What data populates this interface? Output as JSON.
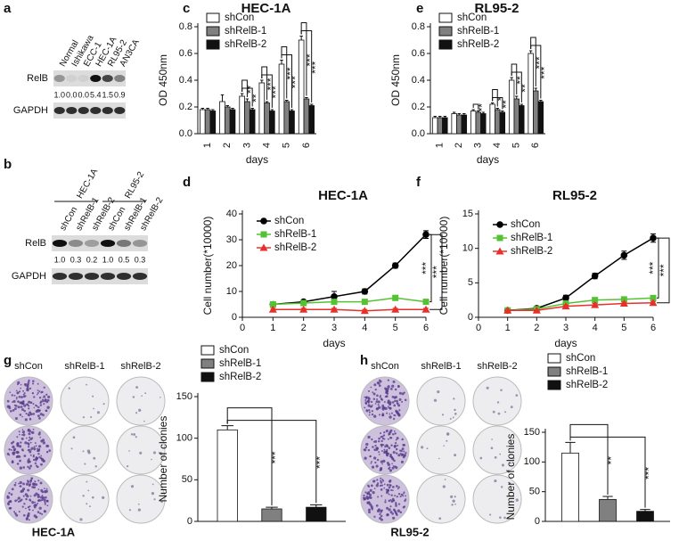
{
  "blots": [
    {
      "panel": "a",
      "lanes": [
        "Normal",
        "Ishikawa",
        "ECC-1",
        "HEC-1A",
        "RL95-2",
        "AN3CA"
      ],
      "proteins": [
        "RelB",
        "GAPDH"
      ],
      "quantification": [
        "1.0",
        "0.0",
        "0.0",
        "5.4",
        "1.5",
        "0.9"
      ]
    },
    {
      "panel": "b",
      "groups": [
        "HEC-1A",
        "RL95-2"
      ],
      "lanes": [
        "shCon",
        "shRelB-1",
        "shRelB-2",
        "shCon",
        "shRelB-1",
        "shRelB-2"
      ],
      "proteins": [
        "RelB",
        "GAPDH"
      ],
      "quantification": [
        "1.0",
        "0.3",
        "0.2",
        "1.0",
        "0.5",
        "0.3"
      ]
    }
  ],
  "colonies": [
    {
      "panel": "g",
      "columns": [
        "shCon",
        "shRelB-1",
        "shRelB-2"
      ],
      "cell_line": "HEC-1A"
    },
    {
      "panel": "h",
      "columns": [
        "shCon",
        "shRelB-1",
        "shRelB-2"
      ],
      "cell_line": "RL95-2"
    }
  ],
  "chart_data": [
    {
      "type": "bar",
      "panel": "c",
      "title": "HEC-1A",
      "x_label": "days",
      "y_label": "OD 450nm",
      "categories": [
        "1",
        "2",
        "3",
        "4",
        "5",
        "6"
      ],
      "ylim": [
        0,
        0.8
      ],
      "yticks": [
        {
          "value": 0,
          "label": "0.0"
        },
        0.2,
        0.4,
        0.6,
        0.8
      ],
      "series": [
        {
          "name": "shCon",
          "color": "#ffffff",
          "values": [
            0.18,
            0.24,
            0.28,
            0.38,
            0.52,
            0.7
          ],
          "errors": [
            0.01,
            0.05,
            0.02,
            0.02,
            0.03,
            0.03
          ]
        },
        {
          "name": "shRelB-1",
          "color": "#808080",
          "values": [
            0.18,
            0.2,
            0.24,
            0.23,
            0.24,
            0.26
          ],
          "errors": [
            0.01,
            0.01,
            0.02,
            0.01,
            0.01,
            0.01
          ]
        },
        {
          "name": "shRelB-2",
          "color": "#111111",
          "values": [
            0.17,
            0.18,
            0.18,
            0.17,
            0.17,
            0.21
          ],
          "errors": [
            0.01,
            0.01,
            0.01,
            0.01,
            0.01,
            0.01
          ]
        }
      ],
      "significance": [
        {
          "category": "3",
          "labels": [
            "**",
            "**"
          ]
        },
        {
          "category": "4",
          "labels": [
            "***",
            "***"
          ]
        },
        {
          "category": "5",
          "labels": [
            "***",
            "***"
          ]
        },
        {
          "category": "6",
          "labels": [
            "***",
            "***"
          ]
        }
      ]
    },
    {
      "type": "bar",
      "panel": "e",
      "title": "RL95-2",
      "x_label": "days",
      "y_label": "OD 450nm",
      "categories": [
        "1",
        "2",
        "3",
        "4",
        "5",
        "6"
      ],
      "ylim": [
        0,
        0.8
      ],
      "yticks": [
        {
          "value": 0,
          "label": "0.0"
        },
        0.2,
        0.4,
        0.6,
        0.8
      ],
      "series": [
        {
          "name": "shCon",
          "color": "#ffffff",
          "values": [
            0.12,
            0.15,
            0.17,
            0.22,
            0.4,
            0.6
          ],
          "errors": [
            0.01,
            0.01,
            0.01,
            0.01,
            0.02,
            0.02
          ]
        },
        {
          "name": "shRelB-1",
          "color": "#808080",
          "values": [
            0.12,
            0.14,
            0.16,
            0.18,
            0.26,
            0.32
          ],
          "errors": [
            0.01,
            0.01,
            0.01,
            0.01,
            0.02,
            0.02
          ]
        },
        {
          "name": "shRelB-2",
          "color": "#111111",
          "values": [
            0.12,
            0.14,
            0.15,
            0.16,
            0.21,
            0.24
          ],
          "errors": [
            0.01,
            0.01,
            0.01,
            0.01,
            0.01,
            0.01
          ]
        }
      ],
      "significance": [
        {
          "category": "3",
          "labels": [
            "**"
          ]
        },
        {
          "category": "4",
          "labels": [
            "*",
            "**"
          ]
        },
        {
          "category": "5",
          "labels": [
            "**",
            "**"
          ]
        },
        {
          "category": "6",
          "labels": [
            "***",
            "***"
          ]
        }
      ]
    },
    {
      "type": "line",
      "panel": "d",
      "title": "HEC-1A",
      "x_label": "days",
      "y_label": "Cell number(*10000)",
      "x": [
        1,
        2,
        3,
        4,
        5,
        6
      ],
      "xlim": [
        0,
        6
      ],
      "xticks": [
        0,
        1,
        2,
        3,
        4,
        5,
        6
      ],
      "ylim": [
        0,
        40
      ],
      "yticks": [
        0,
        10,
        20,
        30,
        40
      ],
      "series": [
        {
          "name": "shCon",
          "color": "#000000",
          "marker": "circle",
          "values": [
            5,
            6,
            8,
            10,
            20,
            32
          ],
          "errors": [
            0.5,
            0.5,
            2,
            1,
            1,
            1.5
          ]
        },
        {
          "name": "shRelB-1",
          "color": "#55c233",
          "marker": "square",
          "values": [
            5,
            5.5,
            6,
            6,
            7.5,
            6
          ],
          "errors": [
            0.5,
            0.5,
            0.5,
            0.5,
            1,
            0.5
          ]
        },
        {
          "name": "shRelB-2",
          "color": "#e8302a",
          "marker": "triangle",
          "values": [
            3,
            3,
            3,
            2.5,
            3,
            3
          ],
          "errors": [
            0.5,
            0.5,
            0.5,
            0.5,
            0.5,
            0.5
          ]
        }
      ],
      "significance": [
        {
          "labels": [
            "***",
            "***"
          ]
        }
      ]
    },
    {
      "type": "line",
      "panel": "f",
      "title": "RL95-2",
      "x_label": "days",
      "y_label": "Cell number(*10000)",
      "x": [
        1,
        2,
        3,
        4,
        5,
        6
      ],
      "xlim": [
        0,
        6
      ],
      "xticks": [
        0,
        1,
        2,
        3,
        4,
        5,
        6
      ],
      "ylim": [
        0,
        15
      ],
      "yticks": [
        0,
        5,
        10,
        15
      ],
      "series": [
        {
          "name": "shCon",
          "color": "#000000",
          "marker": "circle",
          "values": [
            1,
            1.3,
            2.8,
            6,
            9,
            11.5
          ],
          "errors": [
            0.1,
            0.2,
            0.4,
            0.4,
            0.6,
            0.6
          ]
        },
        {
          "name": "shRelB-1",
          "color": "#55c233",
          "marker": "square",
          "values": [
            1,
            1.2,
            2,
            2.5,
            2.6,
            2.8
          ],
          "errors": [
            0.1,
            0.1,
            0.2,
            0.2,
            0.2,
            0.2
          ]
        },
        {
          "name": "shRelB-2",
          "color": "#e8302a",
          "marker": "triangle",
          "values": [
            1,
            1,
            1.6,
            1.8,
            2,
            2.1
          ],
          "errors": [
            0.1,
            0.1,
            0.2,
            0.2,
            0.2,
            0.2
          ]
        }
      ],
      "significance": [
        {
          "labels": [
            "***",
            "***"
          ]
        }
      ]
    },
    {
      "type": "bar",
      "y_label": "Number of clonies",
      "categories": [
        null
      ],
      "ylim": [
        0,
        150
      ],
      "yticks": [
        0,
        50,
        100,
        150
      ],
      "series": [
        {
          "name": "shCon",
          "color": "#ffffff",
          "values": [
            110
          ],
          "errors": [
            5
          ]
        },
        {
          "name": "shRelB-1",
          "color": "#808080",
          "values": [
            15
          ],
          "errors": [
            2
          ]
        },
        {
          "name": "shRelB-2",
          "color": "#111111",
          "values": [
            17
          ],
          "errors": [
            3
          ]
        }
      ],
      "significance": [
        {
          "labels": [
            "***",
            "***"
          ]
        }
      ]
    },
    {
      "type": "bar",
      "y_label": "Number of clonies",
      "categories": [
        null
      ],
      "ylim": [
        0,
        150
      ],
      "yticks": [
        0,
        50,
        100,
        150
      ],
      "series": [
        {
          "name": "shCon",
          "color": "#ffffff",
          "values": [
            115
          ],
          "errors": [
            18
          ]
        },
        {
          "name": "shRelB-1",
          "color": "#808080",
          "values": [
            37
          ],
          "errors": [
            5
          ]
        },
        {
          "name": "shRelB-2",
          "color": "#111111",
          "values": [
            17
          ],
          "errors": [
            3
          ]
        }
      ],
      "significance": [
        {
          "labels": [
            "**",
            "***"
          ]
        }
      ]
    }
  ]
}
